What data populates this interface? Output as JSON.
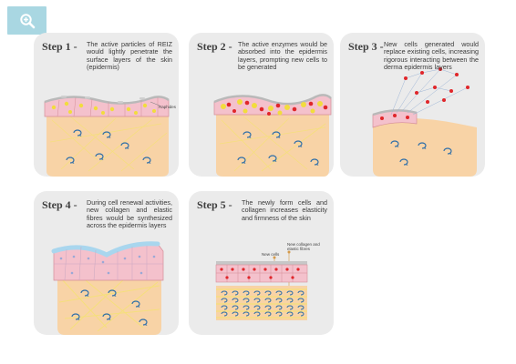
{
  "steps": [
    {
      "label": "Step 1 -",
      "text": "The active particles of REIZ would lightly penetrate the surface layers of the skin (epidermis)",
      "annotation": "Raphides"
    },
    {
      "label": "Step 2 -",
      "text": "The active enzymes would be absorbed into the epidermis layers, prompting new cells to be generated"
    },
    {
      "label": "Step 3 -",
      "text": "New cells generated would replace existing cells, increasing rigorous interacting between the derma epidermis layers"
    },
    {
      "label": "Step 4 -",
      "text": "During cell renewal activities, new collagen and elastic fibres would be synthesized across the epidermis layers"
    },
    {
      "label": "Step 5 -",
      "text": "The newly form cells and collagen increases elasticity and firmness of the skin",
      "annotation_cells": "New cells",
      "annotation_collagen_1": "New collagen and",
      "annotation_collagen_2": "elastic fibres"
    }
  ],
  "colors": {
    "zoom_button": "#a9d7e2",
    "card_bg": "#ebebeb",
    "dermis": "#f8d3a6",
    "epidermis": "#f4c1cc",
    "particle": "#f2dc3d",
    "new_cell": "#e0262a"
  },
  "icons": {
    "zoom": "zoom-in-icon"
  }
}
